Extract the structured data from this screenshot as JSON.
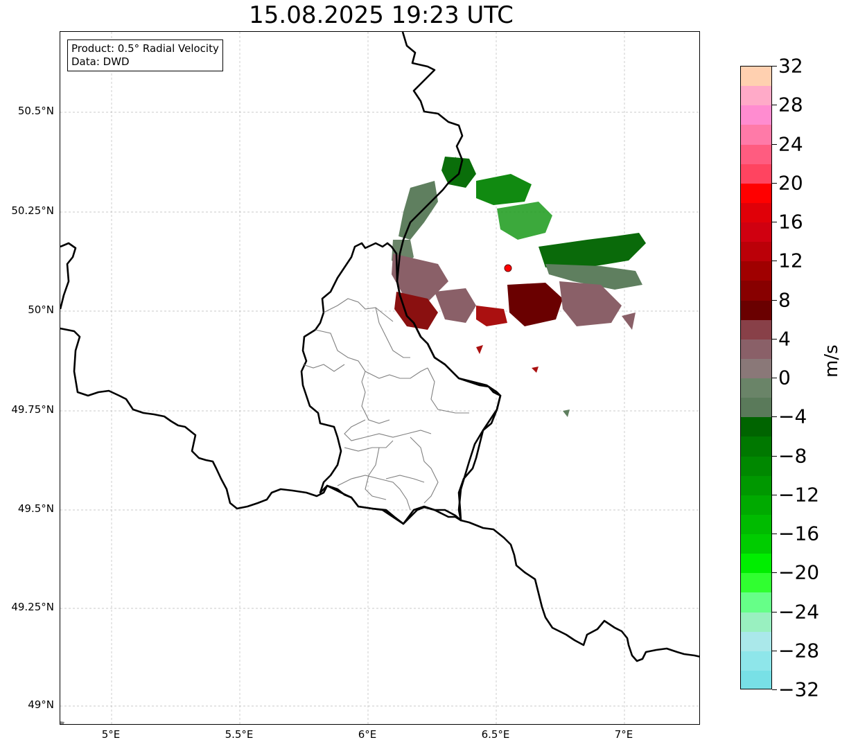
{
  "title": "15.08.2025 19:23 UTC",
  "info": {
    "product": "Product: 0.5° Radial Velocity",
    "source": "Data: DWD"
  },
  "y_ticks": [
    "50.5°N",
    "50.25°N",
    "50°N",
    "49.75°N",
    "49.5°N",
    "49.25°N",
    "49°N"
  ],
  "x_ticks": [
    "5°E",
    "5.5°E",
    "6°E",
    "6.5°E",
    "7°E"
  ],
  "colorbar": {
    "unit": "m/s",
    "tick_labels": [
      "32",
      "28",
      "24",
      "20",
      "16",
      "12",
      "8",
      "4",
      "0",
      "−4",
      "−8",
      "−12",
      "−16",
      "−20",
      "−24",
      "−28",
      "−32"
    ],
    "colors_top_to_bottom": [
      "#ffd0b0",
      "#ffaac8",
      "#ff8cd0",
      "#ff7aa8",
      "#ff5c80",
      "#ff4460",
      "#ff0000",
      "#e00008",
      "#d00010",
      "#bb0008",
      "#a00000",
      "#880000",
      "#6a0000",
      "#884048",
      "#8a6068",
      "#8a7878",
      "#6a8468",
      "#5a7a5a",
      "#006400",
      "#007800",
      "#008800",
      "#009800",
      "#00aa00",
      "#00bb00",
      "#00cc00",
      "#00ee00",
      "#30ff30",
      "#66ff88",
      "#99f0c0",
      "#aae8ea",
      "#8ee6ea",
      "#78e0e6"
    ]
  },
  "map": {
    "radar_site": {
      "lon": 6.55,
      "lat": 50.11,
      "color": "#ff0000"
    },
    "lon_range": [
      4.8,
      7.3
    ],
    "lat_range": [
      48.95,
      50.7
    ]
  }
}
